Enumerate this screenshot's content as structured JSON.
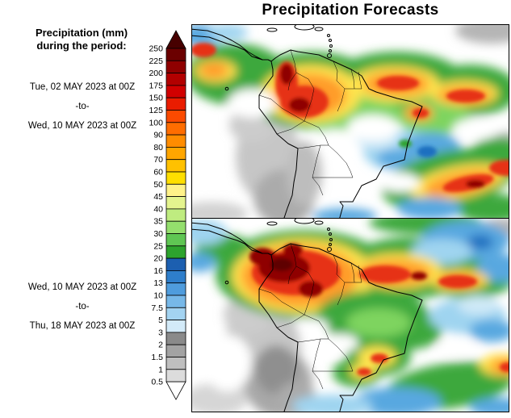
{
  "title": "Precipitation Forecasts",
  "legend": {
    "title_line1": "Precipitation (mm)",
    "title_line2": "during the period:"
  },
  "periods": [
    {
      "start": "Tue, 02 MAY 2023 at 00Z",
      "separator": "-to-",
      "end": "Wed, 10 MAY 2023 at 00Z"
    },
    {
      "start": "Wed, 10 MAY 2023 at 00Z",
      "separator": "-to-",
      "end": "Thu, 18 MAY 2023 at 00Z"
    }
  ],
  "colorbar": {
    "units": "mm",
    "ticks": [
      "250",
      "225",
      "200",
      "175",
      "150",
      "125",
      "100",
      "90",
      "80",
      "70",
      "60",
      "50",
      "45",
      "40",
      "35",
      "30",
      "25",
      "20",
      "16",
      "13",
      "10",
      "7.5",
      "5",
      "3",
      "2",
      "1.5",
      "1",
      "0.5"
    ],
    "cap_top_color": "#470000",
    "cap_bottom_color": "#ffffff",
    "segment_colors": [
      "#6b0000",
      "#8f0000",
      "#b30000",
      "#d10000",
      "#ea1c00",
      "#fb4a00",
      "#ff6d00",
      "#ff8c00",
      "#ffa600",
      "#ffc100",
      "#ffdf00",
      "#fff289",
      "#e4f48e",
      "#bfec80",
      "#94df6d",
      "#5fc653",
      "#2da32d",
      "#1c5fb0",
      "#2e7ecb",
      "#4f9cdd",
      "#77b8e8",
      "#a3d3f1",
      "#d3eaf8",
      "#8a8a8a",
      "#a3a3a3",
      "#bfbfbf",
      "#dcdcdc"
    ]
  }
}
